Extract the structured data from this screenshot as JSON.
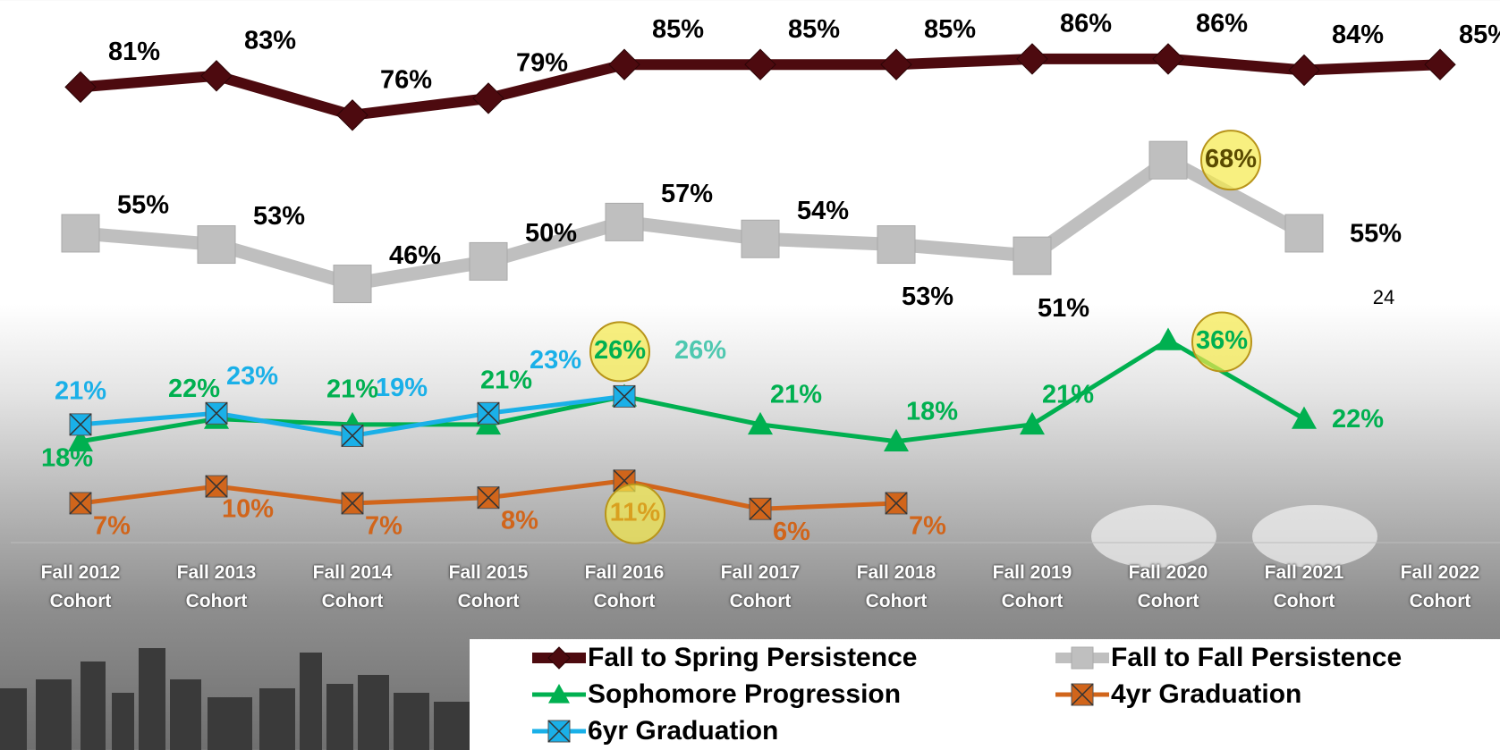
{
  "chart_data": {
    "type": "line",
    "categories": [
      "Fall 2012 Cohort",
      "Fall 2013 Cohort",
      "Fall 2014 Cohort",
      "Fall 2015 Cohort",
      "Fall 2016 Cohort",
      "Fall 2017 Cohort",
      "Fall 2018 Cohort",
      "Fall 2019 Cohort",
      "Fall 2020 Cohort",
      "Fall 2021 Cohort",
      "Fall 2022 Cohort"
    ],
    "ylim": [
      0,
      96
    ],
    "series": [
      {
        "name": "Fall to Spring Persistence",
        "color": "#4d0a0f",
        "marker": "diamond",
        "values": [
          81,
          83,
          76,
          79,
          85,
          85,
          85,
          86,
          86,
          84,
          85
        ],
        "value_labels": [
          "81%",
          "83%",
          "76%",
          "79%",
          "85%",
          "85%",
          "85%",
          "86%",
          "86%",
          "84%",
          "85%"
        ]
      },
      {
        "name": "Fall to Fall Persistence",
        "color": "#bfbfbf",
        "marker": "square",
        "values": [
          55,
          53,
          46,
          50,
          57,
          54,
          53,
          51,
          68,
          55,
          null
        ],
        "value_labels": [
          "55%",
          "53%",
          "46%",
          "50%",
          "57%",
          "54%",
          "53%",
          "51%",
          "68%",
          "55%",
          null
        ]
      },
      {
        "name": "Sophomore Progression",
        "color": "#00b050",
        "marker": "triangle",
        "values": [
          18,
          22,
          21,
          21,
          26,
          21,
          18,
          21,
          36,
          22,
          null
        ],
        "value_labels": [
          "18%",
          "22%",
          "21%",
          "21%",
          "26%",
          "21%",
          "18%",
          "21%",
          "36%",
          "22%",
          null
        ]
      },
      {
        "name": "4yr Graduation",
        "color": "#d1651b",
        "marker": "xsquare",
        "values": [
          7,
          10,
          7,
          8,
          11,
          6,
          7,
          null,
          null,
          null,
          null
        ],
        "value_labels": [
          "7%",
          "10%",
          "7%",
          "8%",
          "11%",
          "6%",
          "7%",
          null,
          null,
          null,
          null
        ]
      },
      {
        "name": "6yr Graduation",
        "color": "#1ab0e8",
        "marker": "xsquare",
        "values": [
          21,
          23,
          19,
          23,
          26,
          null,
          null,
          null,
          null,
          null,
          null
        ],
        "value_labels": [
          "21%",
          "23%",
          "19%",
          "23%",
          "26%",
          null,
          null,
          null,
          null,
          null,
          null
        ]
      }
    ]
  },
  "page_number": "24"
}
